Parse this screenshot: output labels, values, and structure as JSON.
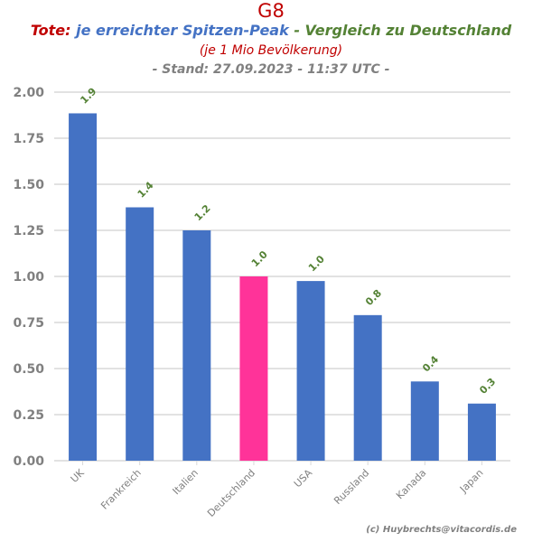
{
  "header": {
    "main_title": "G8",
    "tote_label": "Tote:",
    "peak_label": "je erreichter Spitzen-Peak",
    "vergleich_label": "- Vergleich zu Deutschland",
    "per_label": "(je 1 Mio Bevölkerung)",
    "stand_label": "- Stand: 27.09.2023 - 11:37 UTC -"
  },
  "footer": {
    "credit": "(c) Huybrechts@vitacordis.de"
  },
  "colors": {
    "bar": "#4472c4",
    "highlight": "#ff3399",
    "label": "#548235",
    "axis_text": "#808080",
    "grid": "#d9d9d9"
  },
  "chart_data": {
    "type": "bar",
    "title": "G8",
    "categories": [
      "UK",
      "Frankreich",
      "Italien",
      "Deutschland",
      "USA",
      "Russland",
      "Kanada",
      "Japan"
    ],
    "values": [
      1.885,
      1.375,
      1.25,
      1.0,
      0.975,
      0.79,
      0.43,
      0.31
    ],
    "data_labels": [
      "1.9",
      "1.4",
      "1.2",
      "1.0",
      "1.0",
      "0.8",
      "0.4",
      "0.3"
    ],
    "highlight_category": "Deutschland",
    "y_ticks": [
      "0.00",
      "0.25",
      "0.50",
      "0.75",
      "1.00",
      "1.25",
      "1.50",
      "1.75",
      "2.00"
    ],
    "ylim": [
      0,
      2.0
    ],
    "xlabel": "",
    "ylabel": "",
    "grid": true
  }
}
